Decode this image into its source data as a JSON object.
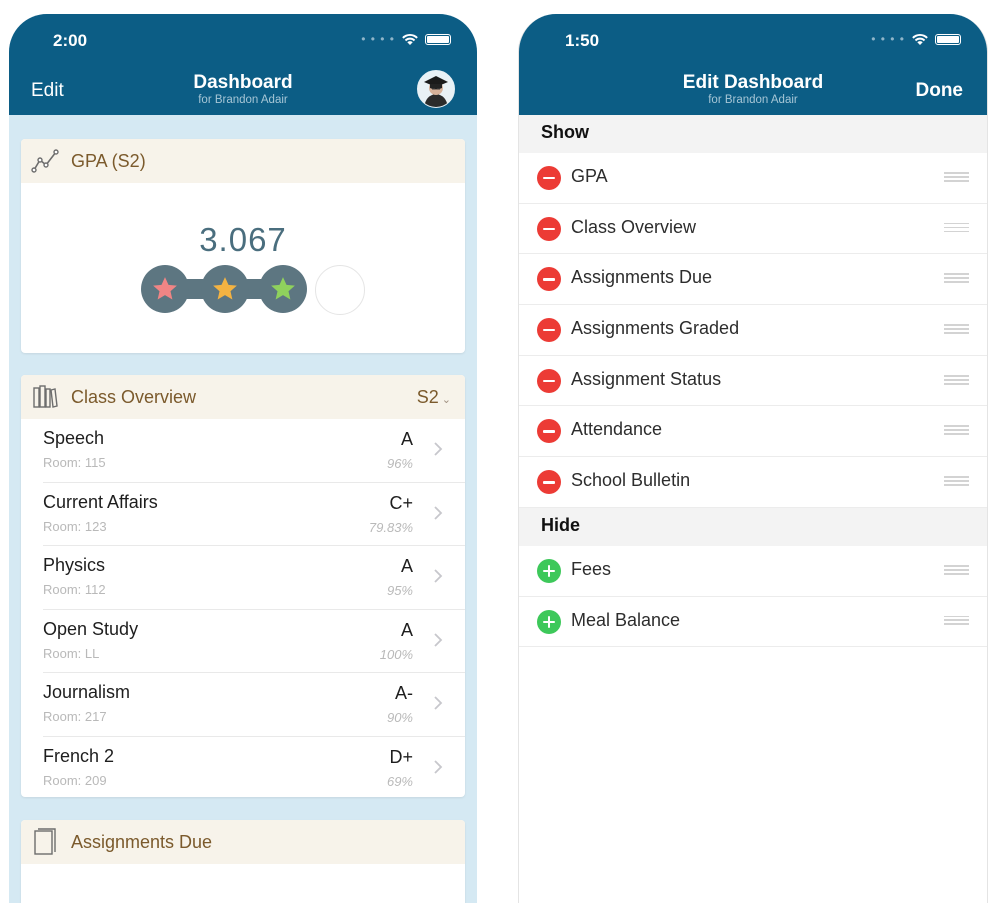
{
  "left": {
    "status_time": "2:00",
    "nav": {
      "edit_label": "Edit",
      "title": "Dashboard",
      "subtitle": "for Brandon Adair"
    },
    "gpa_card": {
      "title": "GPA (S2)",
      "value": "3.067",
      "stars": [
        "#f08585",
        "#f4b342",
        "#8fd15d"
      ],
      "empty_slots": 1
    },
    "class_card": {
      "title": "Class Overview",
      "term": "S2",
      "classes": [
        {
          "name": "Speech",
          "room": "Room: 115",
          "grade": "A",
          "percent": "96%"
        },
        {
          "name": "Current Affairs",
          "room": "Room: 123",
          "grade": "C+",
          "percent": "79.83%"
        },
        {
          "name": "Physics",
          "room": "Room: 112",
          "grade": "A",
          "percent": "95%"
        },
        {
          "name": "Open Study",
          "room": "Room: LL",
          "grade": "A",
          "percent": "100%"
        },
        {
          "name": "Journalism",
          "room": "Room: 217",
          "grade": "A-",
          "percent": "90%"
        },
        {
          "name": "French 2",
          "room": "Room: 209",
          "grade": "D+",
          "percent": "69%"
        }
      ]
    },
    "assignments_card": {
      "title": "Assignments Due"
    }
  },
  "right": {
    "status_time": "1:50",
    "nav": {
      "title": "Edit Dashboard",
      "subtitle": "for Brandon Adair",
      "done_label": "Done"
    },
    "show_header": "Show",
    "show_items": [
      "GPA",
      "Class Overview",
      "Assignments Due",
      "Assignments Graded",
      "Assignment Status",
      "Attendance",
      "School Bulletin"
    ],
    "hide_header": "Hide",
    "hide_items": [
      "Fees",
      "Meal Balance"
    ]
  },
  "colors": {
    "nav_bar": "#0c5d85",
    "remove": "#ec3b35",
    "add": "#3dc85a",
    "card_header": "#f7f3ea",
    "card_title": "#7b5a2c",
    "background": "#d5e9f3"
  }
}
